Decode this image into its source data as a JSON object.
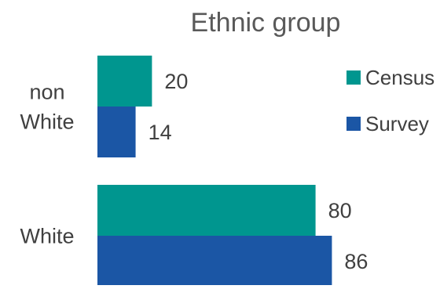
{
  "chart_data": {
    "type": "bar",
    "orientation": "horizontal",
    "title": "Ethnic group",
    "categories": [
      "non White",
      "White"
    ],
    "category_lines": [
      [
        "non",
        "White"
      ],
      [
        "White"
      ]
    ],
    "series": [
      {
        "name": "Census",
        "values": [
          20,
          80
        ],
        "color": "#00968F"
      },
      {
        "name": "Survey",
        "values": [
          14,
          86
        ],
        "color": "#1B56A5"
      }
    ],
    "xlim": [
      0,
      100
    ],
    "data_labels": true,
    "grid": false,
    "legend": "right"
  }
}
